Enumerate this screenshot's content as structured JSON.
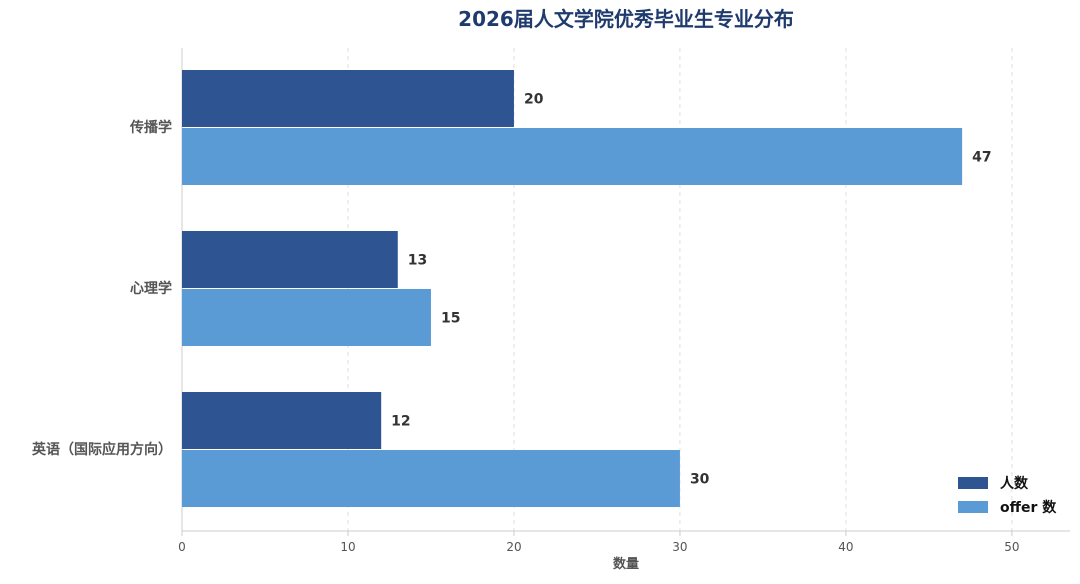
{
  "chart_data": {
    "type": "bar",
    "orientation": "horizontal",
    "title": "2026届人文学院优秀毕业生专业分布",
    "xlabel": "数量",
    "ylabel": "",
    "categories": [
      "传播学",
      "心理学",
      "英语（国际应用方向）"
    ],
    "series": [
      {
        "name": "人数",
        "values": [
          20,
          13,
          12
        ],
        "color": "#2e5491"
      },
      {
        "name": "offer 数",
        "values": [
          47,
          15,
          30
        ],
        "color": "#5b9bd5"
      }
    ],
    "xlim": [
      0,
      53.5
    ],
    "xticks": [
      0,
      10,
      20,
      30,
      40,
      50
    ],
    "grid": "x-dashed",
    "legend_position": "bottom-right",
    "data_labels": true
  },
  "colors": {
    "title": "#1f3b6e",
    "axis_text": "#555555",
    "value_label": "#333333",
    "grid": "#e0e0e0",
    "axis_line": "#cccccc"
  }
}
